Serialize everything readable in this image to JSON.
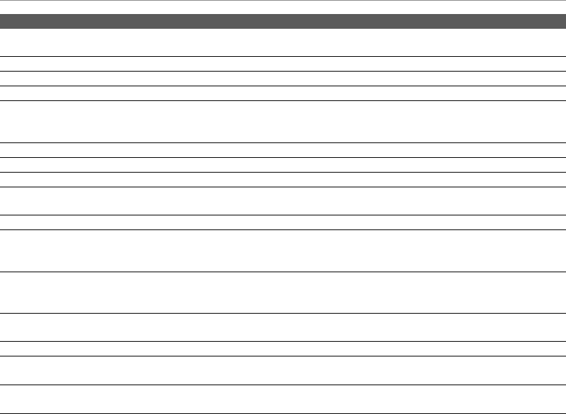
{
  "colors": {
    "header_background": "#5a5a5a",
    "row_divider": "#000000",
    "top_rule": "#8a8a8a",
    "background": "#ffffff"
  },
  "table": {
    "header_cells": [],
    "rows": []
  }
}
